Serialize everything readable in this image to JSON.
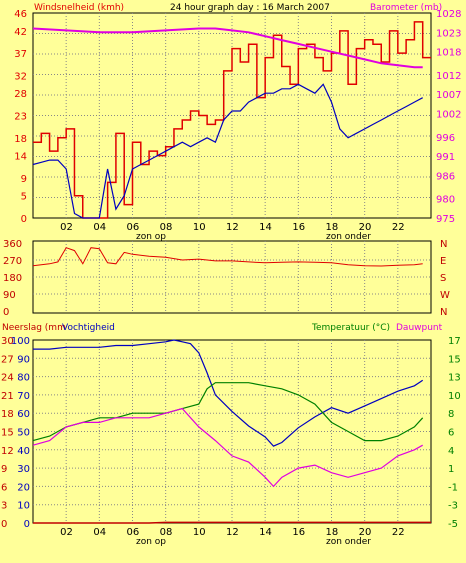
{
  "header": {
    "left_label": "Windsnelheid (kmh)",
    "title": "24 hour graph day : 16 March 2007",
    "right_label": "Barometer (mb)"
  },
  "axis_labels": {
    "x_ticks": [
      "02",
      "04",
      "06",
      "08",
      "10",
      "12",
      "14",
      "16",
      "18",
      "20",
      "22"
    ],
    "sunrise": "zon op",
    "sunset": "zon onder"
  },
  "colors": {
    "background": "#FFFF99",
    "wind": "#E00000",
    "gust_line": "#0000C0",
    "barometer": "#E000E0",
    "humidity": "#0000C0",
    "temperature": "#008000",
    "dewpoint": "#E000E0",
    "rain": "#C00000"
  },
  "chart_data": [
    {
      "type": "line",
      "title": "24 hour graph day : 16 March 2007",
      "xlabel": "",
      "ylabel": "Windsnelheid (kmh)",
      "y2label": "Barometer (mb)",
      "xlim": [
        0,
        24
      ],
      "ylim": [
        0,
        46
      ],
      "y2lim": [
        975,
        1028
      ],
      "y_ticks": [
        0,
        5,
        9,
        14,
        18,
        23,
        28,
        32,
        37,
        42,
        46
      ],
      "y2_ticks": [
        975,
        980,
        986,
        991,
        996,
        1002,
        1007,
        1012,
        1018,
        1023,
        1028
      ],
      "series": [
        {
          "name": "Windsnelheid (kmh)",
          "axis": "left",
          "x": [
            0,
            0.5,
            1,
            1.5,
            2,
            2.5,
            3,
            3.5,
            4,
            4.5,
            5,
            5.5,
            6,
            6.5,
            7,
            7.5,
            8,
            8.5,
            9,
            9.5,
            10,
            10.5,
            11,
            11.5,
            12,
            12.5,
            13,
            13.5,
            14,
            14.5,
            15,
            15.5,
            16,
            16.5,
            17,
            17.5,
            18,
            18.5,
            19,
            19.5,
            20,
            20.5,
            21,
            21.5,
            22,
            22.5,
            23,
            23.5
          ],
          "y": [
            17,
            19,
            15,
            18,
            20,
            5,
            0,
            0,
            0,
            8,
            19,
            3,
            17,
            12,
            15,
            14,
            16,
            20,
            22,
            24,
            23,
            21,
            22,
            33,
            38,
            35,
            39,
            27,
            36,
            41,
            34,
            30,
            38,
            39,
            36,
            33,
            37,
            42,
            30,
            38,
            40,
            39,
            35,
            42,
            37,
            40,
            44,
            36
          ]
        },
        {
          "name": "",
          "axis": "left",
          "x": [
            0,
            0.5,
            1,
            1.5,
            2,
            2.5,
            3,
            3.5,
            4,
            4.5,
            5,
            5.5,
            6,
            6.5,
            7,
            7.5,
            8,
            8.5,
            9,
            9.5,
            10,
            10.5,
            11,
            11.5,
            12,
            12.5,
            13,
            13.5,
            14,
            14.5,
            15,
            15.5,
            16,
            16.5,
            17,
            17.5,
            18,
            18.5,
            19,
            19.5,
            20,
            20.5,
            21,
            21.5,
            22,
            22.5,
            23,
            23.5
          ],
          "y": [
            12,
            12.5,
            13,
            13,
            11,
            1,
            0,
            0,
            0,
            11,
            2,
            5,
            11,
            12,
            13,
            14,
            15,
            16,
            17,
            16,
            17,
            18,
            17,
            22,
            24,
            24,
            26,
            27,
            28,
            28,
            29,
            29,
            30,
            29,
            28,
            30,
            26,
            20,
            18,
            19,
            20,
            21,
            22,
            23,
            24,
            25,
            26,
            27
          ]
        },
        {
          "name": "Barometer (mb)",
          "axis": "right",
          "x": [
            0,
            2,
            4,
            6,
            8,
            10,
            11,
            12,
            13,
            14,
            15,
            16,
            17,
            18,
            19,
            20,
            21,
            22,
            23,
            23.5
          ],
          "y": [
            1024,
            1023.5,
            1023,
            1023,
            1023.5,
            1024,
            1024,
            1023.5,
            1023,
            1022,
            1021,
            1020,
            1019,
            1018,
            1017,
            1016,
            1015,
            1014.5,
            1014,
            1014
          ]
        }
      ]
    },
    {
      "type": "line",
      "title": "",
      "ylabel": "",
      "xlim": [
        0,
        24
      ],
      "ylim": [
        0,
        360
      ],
      "y_ticks": [
        0,
        90,
        180,
        270,
        360
      ],
      "y2_labels": [
        "N",
        "W",
        "S",
        "E",
        "N"
      ],
      "series": [
        {
          "name": "",
          "x": [
            0,
            0.5,
            1,
            1.5,
            2,
            2.5,
            3,
            3.5,
            4,
            4.5,
            5,
            5.5,
            6,
            7,
            8,
            9,
            10,
            11,
            12,
            13,
            14,
            15,
            16,
            17,
            18,
            19,
            20,
            21,
            22,
            23,
            23.5
          ],
          "y": [
            240,
            245,
            250,
            260,
            335,
            320,
            250,
            335,
            330,
            255,
            250,
            310,
            300,
            290,
            285,
            270,
            275,
            265,
            265,
            260,
            255,
            258,
            260,
            258,
            255,
            245,
            240,
            238,
            242,
            245,
            250
          ]
        }
      ]
    },
    {
      "type": "line",
      "title": "",
      "ylabel_left": "Neerslag (mm",
      "ylabel_left2": "Vochtigheid",
      "ylabel_right": "Temperatuur (°C)",
      "ylabel_right2": "Dauwpunt",
      "xlim": [
        0,
        24
      ],
      "y_left_rain_ticks": [
        0,
        3,
        6,
        9,
        12,
        15,
        18,
        21,
        24,
        27,
        30
      ],
      "y_left_hum_ticks": [
        0,
        10,
        20,
        30,
        40,
        50,
        60,
        70,
        80,
        90,
        100
      ],
      "y_right_ticks": [
        -5,
        -3,
        -1,
        1,
        4,
        6,
        8,
        10,
        13,
        15,
        17
      ],
      "series": [
        {
          "name": "Vochtigheid",
          "axis": "humidity",
          "x": [
            0,
            1,
            2,
            3,
            4,
            5,
            6,
            7,
            8,
            8.5,
            9,
            9.5,
            10,
            10.5,
            11,
            12,
            13,
            14,
            14.5,
            15,
            16,
            17,
            18,
            19,
            20,
            21,
            22,
            23,
            23.5
          ],
          "y": [
            95,
            95,
            96,
            96,
            96,
            97,
            97,
            98,
            99,
            100,
            99,
            98,
            93,
            82,
            70,
            61,
            53,
            47,
            42,
            44,
            52,
            58,
            63,
            60,
            64,
            68,
            72,
            75,
            78
          ]
        },
        {
          "name": "Temperatuur",
          "axis": "right",
          "x": [
            0,
            1,
            2,
            3,
            4,
            5,
            6,
            7,
            8,
            9,
            10,
            10.5,
            11,
            12,
            13,
            14,
            15,
            16,
            17,
            18,
            19,
            20,
            21,
            22,
            23,
            23.5
          ],
          "y": [
            5,
            5.5,
            6.5,
            7,
            7.5,
            7.5,
            8,
            8,
            8,
            8.5,
            9,
            11,
            12,
            12,
            12,
            11.5,
            11,
            10,
            9,
            7,
            6,
            5,
            5,
            5.5,
            6.5,
            7.5
          ]
        },
        {
          "name": "Dauwpunt",
          "axis": "right",
          "x": [
            0,
            1,
            2,
            3,
            4,
            5,
            6,
            7,
            8,
            9,
            10,
            11,
            12,
            13,
            14,
            14.5,
            15,
            16,
            17,
            18,
            19,
            20,
            21,
            22,
            23,
            23.5
          ],
          "y": [
            4.5,
            5,
            6.5,
            7,
            7,
            7.5,
            7.5,
            7.5,
            8,
            8.5,
            6.5,
            5,
            3,
            2,
            0,
            -1,
            0,
            1,
            1.5,
            0.5,
            0,
            0.5,
            1,
            3,
            4,
            4.5
          ]
        },
        {
          "name": "Neerslag",
          "axis": "rain",
          "x": [
            0,
            7,
            8,
            24
          ],
          "y": [
            0,
            0,
            0.1,
            0.1
          ]
        }
      ]
    }
  ]
}
